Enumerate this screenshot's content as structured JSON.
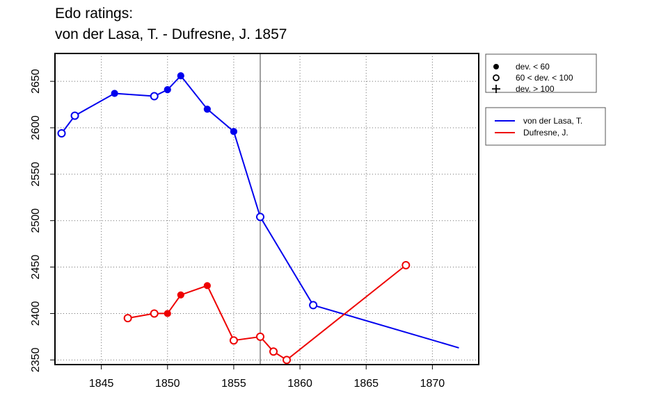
{
  "chart_data": {
    "type": "line",
    "title": "Edo ratings:",
    "subtitle": "von der Lasa, T. - Dufresne, J. 1857",
    "xlabel": "",
    "ylabel": "",
    "xlim": [
      1841.5,
      1873.5
    ],
    "ylim": [
      2345,
      2680
    ],
    "xticks": [
      1845,
      1850,
      1855,
      1860,
      1865,
      1870
    ],
    "yticks": [
      2350,
      2400,
      2450,
      2500,
      2550,
      2600,
      2650
    ],
    "grid": true,
    "vline": 1857,
    "marker_legend": {
      "position": "top-right",
      "entries": [
        {
          "symbol": "filled-circle",
          "label": "dev. < 60"
        },
        {
          "symbol": "open-circle",
          "label": "60 < dev. < 100"
        },
        {
          "symbol": "plus",
          "label": "dev. > 100"
        }
      ]
    },
    "series": [
      {
        "name": "von der Lasa, T.",
        "color": "#0000ee",
        "points": [
          {
            "x": 1842,
            "y": 2594,
            "marker": "open-circle"
          },
          {
            "x": 1843,
            "y": 2613,
            "marker": "open-circle"
          },
          {
            "x": 1846,
            "y": 2637,
            "marker": "filled-circle"
          },
          {
            "x": 1849,
            "y": 2634,
            "marker": "open-circle"
          },
          {
            "x": 1850,
            "y": 2641,
            "marker": "filled-circle"
          },
          {
            "x": 1851,
            "y": 2656,
            "marker": "filled-circle"
          },
          {
            "x": 1853,
            "y": 2620,
            "marker": "filled-circle"
          },
          {
            "x": 1855,
            "y": 2596,
            "marker": "filled-circle"
          },
          {
            "x": 1857,
            "y": 2504,
            "marker": "open-circle"
          },
          {
            "x": 1861,
            "y": 2409,
            "marker": "open-circle"
          },
          {
            "x": 1872,
            "y": 2363,
            "marker": "none"
          }
        ]
      },
      {
        "name": "Dufresne, J.",
        "color": "#ee0000",
        "points": [
          {
            "x": 1847,
            "y": 2395,
            "marker": "open-circle"
          },
          {
            "x": 1849,
            "y": 2400,
            "marker": "open-circle"
          },
          {
            "x": 1850,
            "y": 2400,
            "marker": "filled-circle"
          },
          {
            "x": 1851,
            "y": 2420,
            "marker": "filled-circle"
          },
          {
            "x": 1853,
            "y": 2430,
            "marker": "filled-circle"
          },
          {
            "x": 1855,
            "y": 2371,
            "marker": "open-circle"
          },
          {
            "x": 1857,
            "y": 2375,
            "marker": "open-circle"
          },
          {
            "x": 1858,
            "y": 2359,
            "marker": "open-circle"
          },
          {
            "x": 1859,
            "y": 2350,
            "marker": "open-circle"
          },
          {
            "x": 1868,
            "y": 2452,
            "marker": "open-circle"
          }
        ]
      }
    ]
  }
}
